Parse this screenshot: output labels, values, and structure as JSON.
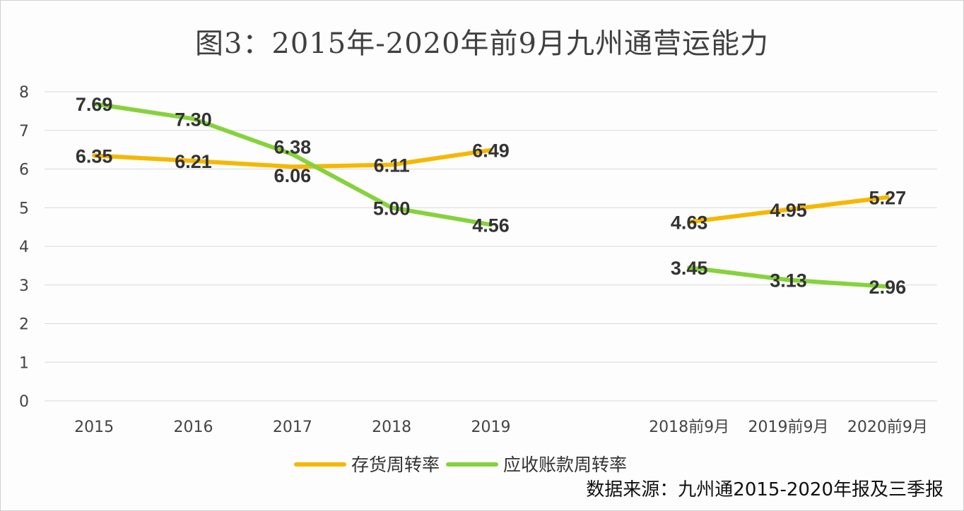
{
  "chart_data": {
    "type": "line",
    "title": "图3：2015年-2020年前9月九州通营运能力",
    "categories": [
      "2015",
      "2016",
      "2017",
      "2018",
      "2019",
      "",
      "2018前9月",
      "2019前9月",
      "2020前9月"
    ],
    "series": [
      {
        "name": "存货周转率",
        "color": "#F5B800",
        "values": [
          6.35,
          6.21,
          6.06,
          6.11,
          6.49,
          null,
          4.63,
          4.95,
          5.27
        ]
      },
      {
        "name": "应收账款周转率",
        "color": "#86D23C",
        "values": [
          7.69,
          7.3,
          6.38,
          5.0,
          4.56,
          null,
          3.45,
          3.13,
          2.96
        ]
      }
    ],
    "ylim": [
      0,
      8
    ],
    "yticks": [
      0,
      1,
      2,
      3,
      4,
      5,
      6,
      7,
      8
    ],
    "grid": true,
    "legend": "bottom",
    "source": "数据来源：九州通2015-2020年报及三季报"
  }
}
